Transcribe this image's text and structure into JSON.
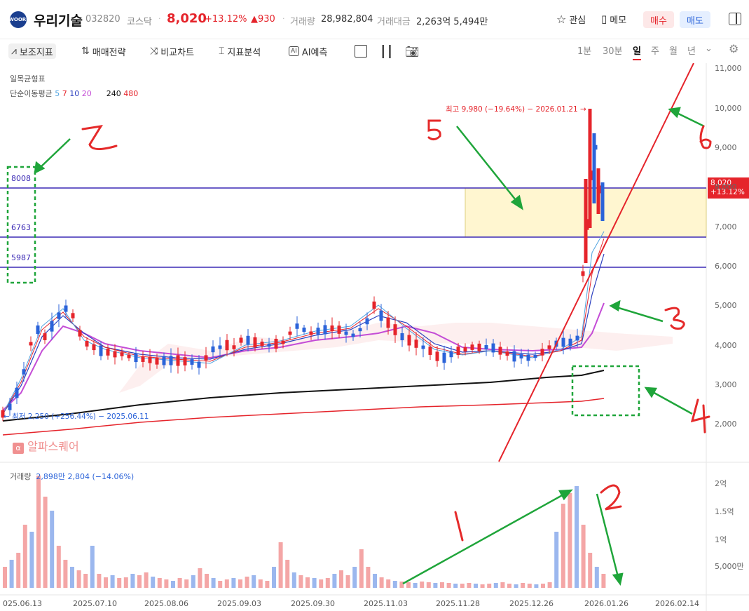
{
  "header": {
    "logo_text": "WOORI",
    "stock_name": "우리기술",
    "stock_code": "032820",
    "market": "코스닥",
    "price": "8,020",
    "change_pct": "+13.12%",
    "change_abs": "▲930",
    "volume_label": "거래량",
    "volume_value": "28,982,804",
    "amount_label": "거래대금",
    "amount_value": "2,263억 5,494만",
    "watch_label": "관심",
    "memo_label": "메모",
    "buy_label": "매수",
    "sell_label": "매도"
  },
  "toolbar": {
    "indicators": "보조지표",
    "strategy": "매매전략",
    "compare": "비교차트",
    "analysis": "지표분석",
    "ai": "AI예측",
    "periods": [
      "1분",
      "30분",
      "일",
      "주",
      "월",
      "년"
    ],
    "active_period": "일"
  },
  "chart": {
    "ichimoku_label": "일목균형표",
    "ma_label": "단순이동평균",
    "ma_periods": [
      "5",
      "7",
      "10",
      "20",
      "240",
      "480"
    ],
    "ma_colors": [
      "#4fa3e0",
      "#e5242b",
      "#2b3fbf",
      "#c44dd6",
      "#111111",
      "#e5242b"
    ],
    "high_annotation": "최고 9,980 (−19.64%) − 2026.01.21 →",
    "low_annotation": "← 최저 2,250 (+256.44%) − 2025.06.11",
    "current_price_tag": "8,020",
    "current_pct_tag": "+13.12%",
    "watermark": "알파스퀘어",
    "y_ticks": [
      "11,000",
      "10,000",
      "9,000",
      "8,000",
      "7,000",
      "6,000",
      "5,000",
      "4,000",
      "3,000",
      "2,000"
    ],
    "hlines": [
      "8008",
      "6763",
      "5987"
    ],
    "volume_label": "거래량",
    "volume_info": "2,898만 2,804 (−14.06%)",
    "volume_ticks": [
      "2억",
      "1.5억",
      "1억",
      "5,000만"
    ],
    "x_ticks": [
      "025.06.13",
      "2025.07.10",
      "2025.08.06",
      "2025.09.03",
      "2025.09.30",
      "2025.11.03",
      "2025.11.28",
      "2025.12.26",
      "2026.01.26",
      "2026.02.14"
    ],
    "handwritten_numbers": [
      "1",
      "2",
      "3",
      "4",
      "5",
      "6",
      "7"
    ]
  }
}
